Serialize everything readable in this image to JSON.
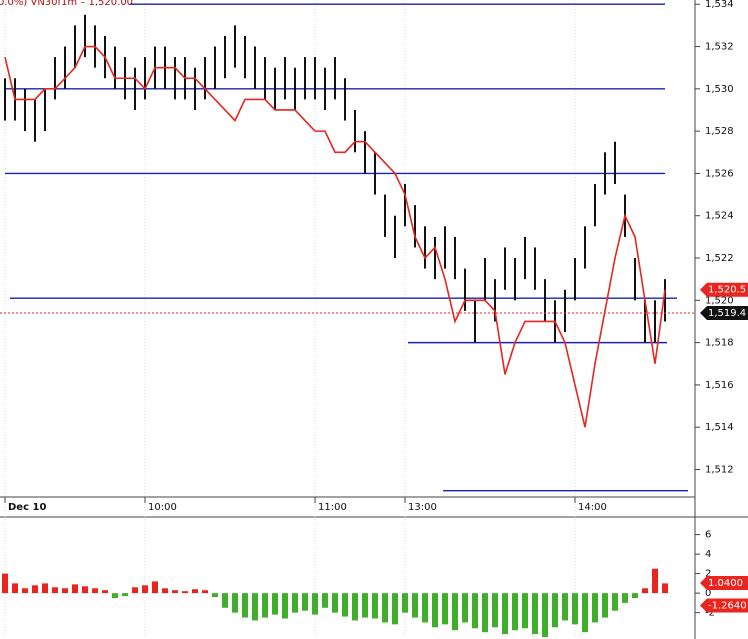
{
  "chart_data": [
    {
      "type": "ohlc",
      "title": "0.0%) VN30f1m – 1,520.00",
      "categories": [
        "Dec 10",
        null,
        null,
        null,
        null,
        null,
        null,
        null,
        null,
        null,
        null,
        null,
        null,
        null,
        "10:00",
        null,
        null,
        null,
        null,
        null,
        null,
        null,
        null,
        null,
        null,
        null,
        null,
        null,
        null,
        null,
        null,
        "11:00",
        null,
        null,
        null,
        null,
        null,
        null,
        null,
        null,
        "13:00",
        null,
        null,
        null,
        null,
        null,
        null,
        null,
        null,
        null,
        null,
        null,
        null,
        null,
        null,
        null,
        null,
        "14:00",
        null,
        null,
        null,
        null,
        null,
        null,
        null,
        null,
        null
      ],
      "high": [
        1530.5,
        1530.5,
        1530,
        1529.5,
        1530,
        1531.5,
        1532,
        1533,
        1533.5,
        1533,
        1532.5,
        1532,
        1531.5,
        1531,
        1531.5,
        1532,
        1532,
        1531.5,
        1531.5,
        1531,
        1531.5,
        1532,
        1532.5,
        1533,
        1532.5,
        1532,
        1531.5,
        1531,
        1531.5,
        1531,
        1531.5,
        1531.5,
        1531,
        1531.5,
        1530.5,
        1529,
        1528,
        1527,
        1525,
        1524,
        1525.5,
        1524.5,
        1523.5,
        1523,
        1523.5,
        1523,
        1521.5,
        1520,
        1522,
        1521,
        1522.5,
        1522,
        1523,
        1522.5,
        1521,
        1520,
        1520.5,
        1522,
        1523.5,
        1525.5,
        1527,
        1527.5,
        1525,
        1522,
        1520,
        1520,
        1521
      ],
      "low": [
        1528.5,
        1528.5,
        1528,
        1527.5,
        1528,
        1529.5,
        1530,
        1531,
        1531.5,
        1531,
        1530.5,
        1530,
        1529.5,
        1529,
        1529.5,
        1530,
        1530,
        1529.5,
        1529.5,
        1529,
        1529.5,
        1530,
        1530.5,
        1531,
        1530.5,
        1530,
        1529.5,
        1529,
        1529.5,
        1529,
        1529.5,
        1529.5,
        1529,
        1529.5,
        1528.5,
        1527,
        1526,
        1525,
        1523,
        1522,
        1523.5,
        1522.5,
        1521.5,
        1521,
        1521.5,
        1521,
        1519.5,
        1518,
        1520,
        1519,
        1520.5,
        1520,
        1521,
        1520.5,
        1519,
        1518,
        1518.5,
        1520,
        1521.5,
        1523.5,
        1525,
        1525.5,
        1523,
        1520,
        1518,
        1518,
        1519
      ],
      "bar_color": "#111111",
      "series": [
        {
          "color": "#e8251f",
          "values": [
            1531.5,
            1529.5,
            1529.5,
            1529.5,
            1530,
            1530,
            1530.5,
            1531,
            1532,
            1532,
            1531.5,
            1530.5,
            1530.5,
            1530.5,
            1530,
            1531,
            1531,
            1531,
            1530.5,
            1530.5,
            1530,
            1529.5,
            1529,
            1528.5,
            1529.5,
            1529.5,
            1529.5,
            1529,
            1529,
            1529,
            1528.5,
            1528,
            1528,
            1527,
            1527,
            1527.5,
            1527.5,
            1527,
            1526.5,
            1526,
            1525,
            1523,
            1522,
            1522.5,
            1521,
            1519,
            1520,
            1520,
            1520,
            1519.5,
            1516.5,
            1518,
            1519,
            1519,
            1519,
            1519,
            1518,
            1516,
            1514,
            1517,
            1519.5,
            1522,
            1524,
            1523,
            1520,
            1517,
            1520.5
          ]
        }
      ],
      "levels": [
        {
          "value": 1534,
          "from": 12.5,
          "to": 66
        },
        {
          "value": 1530,
          "from": 0,
          "to": 66
        },
        {
          "value": 1526,
          "from": 0,
          "to": 66
        },
        {
          "value": 1520.1,
          "from": 0.5,
          "to": 67.2
        },
        {
          "value": 1518,
          "from": 40.3,
          "to": 66.2
        },
        {
          "value": 1511,
          "from": 43.8,
          "to": 68.3
        }
      ],
      "level_color": "#1a22a8",
      "price_tags": [
        {
          "value": 1520.5,
          "label": "1,520.5",
          "color": "#e8251f"
        },
        {
          "value": 1519.4,
          "label": "1,519.4",
          "color": "#111111"
        }
      ],
      "ylim": [
        1510.7,
        1534.2
      ],
      "yticks": [
        {
          "value": 1512,
          "label": "1,512"
        },
        {
          "value": 1514,
          "label": "1,514"
        },
        {
          "value": 1516,
          "label": "1,516"
        },
        {
          "value": 1518,
          "label": "1,518"
        },
        {
          "value": 1520,
          "label": "1,520"
        },
        {
          "value": 1522,
          "label": "1,522"
        },
        {
          "value": 1524,
          "label": "1,524"
        },
        {
          "value": 1526,
          "label": "1,526"
        },
        {
          "value": 1528,
          "label": "1,528"
        },
        {
          "value": 1530,
          "label": "1,530"
        },
        {
          "value": 1532,
          "label": "1,532"
        },
        {
          "value": 1534,
          "label": "1,534"
        }
      ]
    },
    {
      "type": "histogram",
      "values": [
        2,
        1,
        0.5,
        0.8,
        1,
        0.6,
        0.5,
        0.9,
        0.7,
        0.5,
        0.3,
        -0.5,
        -0.3,
        0.6,
        0.8,
        1.2,
        0.5,
        0.3,
        0.2,
        0.4,
        0.3,
        -0.4,
        -1.5,
        -2,
        -2.5,
        -2.8,
        -2.5,
        -2.2,
        -2.6,
        -2,
        -1.8,
        -2.2,
        -1.5,
        -2,
        -2.4,
        -2.8,
        -2.5,
        -2.6,
        -3,
        -3.2,
        -2,
        -2.5,
        -3,
        -3.5,
        -3.2,
        -3.8,
        -3,
        -3.6,
        -4,
        -3.5,
        -4.2,
        -3.8,
        -3.6,
        -4.2,
        -4.5,
        -3.5,
        -2.8,
        -3.2,
        -4,
        -3,
        -2.5,
        -1.8,
        -1,
        -0.5,
        0.5,
        2.5,
        1
      ],
      "positive_color": "#e8251f",
      "negative_color": "#3fae2a",
      "price_tags": [
        {
          "value": 1.04,
          "label": "1.0400",
          "color": "#e8251f"
        },
        {
          "value": -1.264,
          "label": "-1.2640",
          "color": "#e8251f"
        }
      ],
      "ylim": [
        -4.7,
        7.7
      ],
      "yticks": [
        6,
        4,
        2,
        0,
        -2
      ]
    }
  ]
}
